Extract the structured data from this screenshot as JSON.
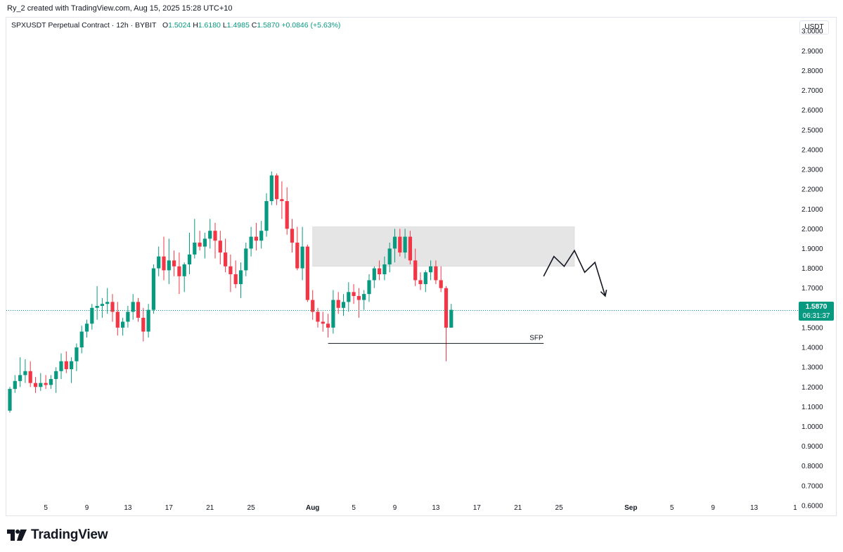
{
  "header": {
    "credit": "Ry_2 created with TradingView.com, Aug 15, 2025 15:28 UTC+10"
  },
  "legend": {
    "symbol": "SPXUSDT Perpetual Contract · 12h · BYBIT",
    "o_label": "O",
    "o": "1.5024",
    "h_label": "H",
    "h": "1.6180",
    "l_label": "L",
    "l": "1.4985",
    "c_label": "C",
    "c": "1.5870",
    "change": "+0.0846 (+5.63%)"
  },
  "currency_label": "USDT",
  "last_price": {
    "value": "1.5870",
    "countdown": "06:31:37"
  },
  "footer": {
    "brand": "TradingView"
  },
  "colors": {
    "up": "#089981",
    "down": "#f23645",
    "zone": "#e0e0e0",
    "lastline": "#089981"
  },
  "chart_data": {
    "type": "candlestick",
    "title": "SPXUSDT Perpetual Contract · 12h · BYBIT",
    "ylim": [
      0.55,
      3.04
    ],
    "y_ticks": [
      "3.0000",
      "2.9000",
      "2.8000",
      "2.7000",
      "2.6000",
      "2.5000",
      "2.4000",
      "2.3000",
      "2.2000",
      "2.1000",
      "2.0000",
      "1.9000",
      "1.8000",
      "1.7000",
      "1.6000",
      "1.5000",
      "1.4000",
      "1.3000",
      "1.2000",
      "1.1000",
      "1.0000",
      "0.9000",
      "0.8000",
      "0.7000",
      "0.6000"
    ],
    "x_ticks": [
      {
        "label": "5",
        "i": 7
      },
      {
        "label": "9",
        "i": 15
      },
      {
        "label": "13",
        "i": 23
      },
      {
        "label": "17",
        "i": 31
      },
      {
        "label": "21",
        "i": 39
      },
      {
        "label": "25",
        "i": 47
      },
      {
        "label": "Aug",
        "i": 59
      },
      {
        "label": "5",
        "i": 67
      },
      {
        "label": "9",
        "i": 75
      },
      {
        "label": "13",
        "i": 83
      },
      {
        "label": "17",
        "i": 91
      },
      {
        "label": "21",
        "i": 99
      },
      {
        "label": "25",
        "i": 107
      },
      {
        "label": "Sep",
        "i": 121
      },
      {
        "label": "5",
        "i": 129
      },
      {
        "label": "9",
        "i": 137
      },
      {
        "label": "13",
        "i": 145
      },
      {
        "label": "1",
        "i": 153
      }
    ],
    "candles": [
      [
        1.08,
        1.2,
        1.07,
        1.19
      ],
      [
        1.19,
        1.26,
        1.17,
        1.23
      ],
      [
        1.23,
        1.35,
        1.2,
        1.26
      ],
      [
        1.26,
        1.34,
        1.22,
        1.28
      ],
      [
        1.28,
        1.33,
        1.2,
        1.22
      ],
      [
        1.22,
        1.25,
        1.17,
        1.2
      ],
      [
        1.2,
        1.27,
        1.18,
        1.22
      ],
      [
        1.22,
        1.26,
        1.19,
        1.21
      ],
      [
        1.21,
        1.26,
        1.19,
        1.24
      ],
      [
        1.24,
        1.3,
        1.17,
        1.28
      ],
      [
        1.28,
        1.37,
        1.24,
        1.33
      ],
      [
        1.33,
        1.38,
        1.27,
        1.29
      ],
      [
        1.29,
        1.35,
        1.22,
        1.33
      ],
      [
        1.33,
        1.42,
        1.28,
        1.4
      ],
      [
        1.4,
        1.51,
        1.37,
        1.48
      ],
      [
        1.48,
        1.54,
        1.45,
        1.52
      ],
      [
        1.52,
        1.62,
        1.49,
        1.6
      ],
      [
        1.6,
        1.71,
        1.54,
        1.61
      ],
      [
        1.61,
        1.65,
        1.55,
        1.62
      ],
      [
        1.62,
        1.7,
        1.57,
        1.63
      ],
      [
        1.63,
        1.67,
        1.53,
        1.58
      ],
      [
        1.58,
        1.63,
        1.46,
        1.5
      ],
      [
        1.5,
        1.55,
        1.46,
        1.53
      ],
      [
        1.53,
        1.61,
        1.5,
        1.58
      ],
      [
        1.58,
        1.67,
        1.54,
        1.63
      ],
      [
        1.63,
        1.65,
        1.53,
        1.55
      ],
      [
        1.55,
        1.6,
        1.43,
        1.48
      ],
      [
        1.48,
        1.62,
        1.45,
        1.59
      ],
      [
        1.59,
        1.82,
        1.57,
        1.8
      ],
      [
        1.8,
        1.91,
        1.76,
        1.86
      ],
      [
        1.86,
        1.96,
        1.74,
        1.79
      ],
      [
        1.79,
        1.95,
        1.72,
        1.84
      ],
      [
        1.84,
        1.89,
        1.76,
        1.81
      ],
      [
        1.81,
        1.88,
        1.67,
        1.76
      ],
      [
        1.76,
        1.83,
        1.68,
        1.82
      ],
      [
        1.82,
        1.98,
        1.77,
        1.87
      ],
      [
        1.87,
        2.05,
        1.85,
        1.93
      ],
      [
        1.93,
        1.99,
        1.89,
        1.91
      ],
      [
        1.91,
        1.98,
        1.85,
        1.95
      ],
      [
        1.95,
        2.05,
        1.9,
        1.99
      ],
      [
        1.99,
        2.03,
        1.85,
        1.94
      ],
      [
        1.94,
        1.99,
        1.82,
        1.88
      ],
      [
        1.88,
        1.95,
        1.78,
        1.81
      ],
      [
        1.81,
        1.87,
        1.68,
        1.77
      ],
      [
        1.77,
        1.84,
        1.7,
        1.72
      ],
      [
        1.72,
        1.83,
        1.65,
        1.79
      ],
      [
        1.79,
        1.93,
        1.76,
        1.9
      ],
      [
        1.9,
        2.01,
        1.86,
        1.96
      ],
      [
        1.96,
        2.03,
        1.89,
        1.94
      ],
      [
        1.94,
        2.04,
        1.9,
        1.99
      ],
      [
        1.99,
        2.18,
        1.96,
        2.14
      ],
      [
        2.14,
        2.29,
        2.12,
        2.27
      ],
      [
        2.27,
        2.28,
        2.12,
        2.15
      ],
      [
        2.15,
        2.24,
        2.05,
        2.14
      ],
      [
        2.14,
        2.21,
        1.97,
        2.0
      ],
      [
        2.0,
        2.05,
        1.88,
        1.93
      ],
      [
        1.93,
        2.01,
        1.79,
        1.8
      ],
      [
        1.8,
        2.01,
        1.74,
        1.91
      ],
      [
        1.91,
        1.92,
        1.63,
        1.64
      ],
      [
        1.64,
        1.69,
        1.54,
        1.58
      ],
      [
        1.58,
        1.6,
        1.5,
        1.53
      ],
      [
        1.53,
        1.58,
        1.48,
        1.52
      ],
      [
        1.52,
        1.57,
        1.45,
        1.5
      ],
      [
        1.5,
        1.69,
        1.47,
        1.64
      ],
      [
        1.64,
        1.68,
        1.57,
        1.6
      ],
      [
        1.6,
        1.67,
        1.56,
        1.63
      ],
      [
        1.63,
        1.73,
        1.58,
        1.68
      ],
      [
        1.68,
        1.72,
        1.62,
        1.66
      ],
      [
        1.66,
        1.7,
        1.55,
        1.64
      ],
      [
        1.64,
        1.69,
        1.59,
        1.67
      ],
      [
        1.67,
        1.77,
        1.63,
        1.74
      ],
      [
        1.74,
        1.81,
        1.7,
        1.8
      ],
      [
        1.8,
        1.84,
        1.74,
        1.77
      ],
      [
        1.77,
        1.86,
        1.74,
        1.82
      ],
      [
        1.82,
        1.93,
        1.78,
        1.9
      ],
      [
        1.9,
        2.0,
        1.83,
        1.96
      ],
      [
        1.96,
        2.0,
        1.86,
        1.88
      ],
      [
        1.88,
        2.0,
        1.85,
        1.96
      ],
      [
        1.96,
        1.99,
        1.82,
        1.84
      ],
      [
        1.84,
        1.9,
        1.71,
        1.74
      ],
      [
        1.74,
        1.78,
        1.69,
        1.72
      ],
      [
        1.72,
        1.79,
        1.68,
        1.78
      ],
      [
        1.78,
        1.84,
        1.74,
        1.81
      ],
      [
        1.81,
        1.84,
        1.72,
        1.74
      ],
      [
        1.74,
        1.81,
        1.68,
        1.7
      ],
      [
        1.7,
        1.71,
        1.33,
        1.5
      ],
      [
        1.5,
        1.62,
        1.5,
        1.59
      ]
    ],
    "annotations": {
      "zone": {
        "from_index": 59,
        "to_index": 110,
        "low": 1.81,
        "high": 2.01
      },
      "sfp_level": {
        "label": "SFP",
        "price": 1.42,
        "from_index": 62,
        "to_index": 104
      },
      "forecast_path": [
        [
          104,
          1.76
        ],
        [
          106,
          1.86
        ],
        [
          108,
          1.81
        ],
        [
          110,
          1.89
        ],
        [
          112,
          1.78
        ],
        [
          114,
          1.83
        ],
        [
          116,
          1.66
        ]
      ]
    },
    "last_price": 1.587
  }
}
